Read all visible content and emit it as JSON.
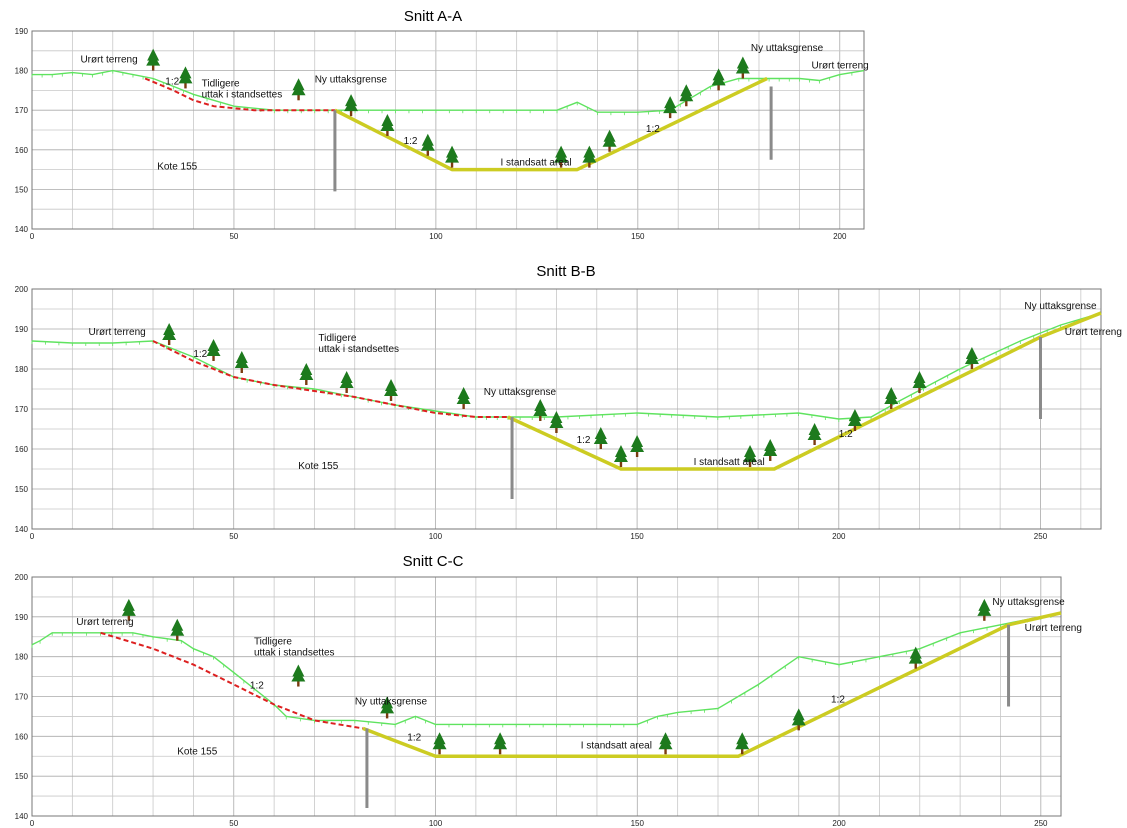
{
  "labels": {
    "unbroken_terrain": "Urørt terreng",
    "former_extraction": [
      "Tidligere",
      "uttak i standsettes"
    ],
    "new_boundary": "Ny uttaksgrense",
    "restored_area": "I standsatt areal",
    "level": "Kote 155",
    "slope": "1:2"
  },
  "colors": {
    "terrain": "#5fe35f",
    "former": "#dd2020",
    "restored": "#cccc22",
    "boundary": "#8a8a8a",
    "tree_green": "#1d7a1d",
    "tree_trunk": "#7a3b10"
  },
  "chart_data": [
    {
      "type": "cross-section",
      "title": "Snitt A-A",
      "xlim": [
        0,
        206
      ],
      "ylim": [
        140,
        190
      ],
      "xticks": [
        0,
        50,
        100,
        150,
        200
      ],
      "yticks": [
        140,
        150,
        160,
        170,
        180,
        190
      ],
      "terrain": [
        [
          0,
          179
        ],
        [
          5,
          179
        ],
        [
          10,
          179.5
        ],
        [
          15,
          179
        ],
        [
          20,
          180
        ],
        [
          25,
          179
        ],
        [
          30,
          178
        ],
        [
          35,
          176
        ],
        [
          40,
          174
        ],
        [
          50,
          171
        ],
        [
          60,
          170
        ],
        [
          70,
          170
        ],
        [
          80,
          170
        ],
        [
          90,
          170
        ],
        [
          100,
          170
        ],
        [
          110,
          170
        ],
        [
          120,
          170
        ],
        [
          130,
          170
        ],
        [
          135,
          172
        ],
        [
          140,
          169.5
        ],
        [
          150,
          169.5
        ],
        [
          158,
          170
        ],
        [
          163,
          173
        ],
        [
          168,
          176
        ],
        [
          175,
          178
        ],
        [
          180,
          178
        ],
        [
          185,
          178
        ],
        [
          190,
          178
        ],
        [
          195,
          177.5
        ],
        [
          200,
          179
        ],
        [
          206,
          180
        ]
      ],
      "former": [
        [
          28,
          178
        ],
        [
          35,
          175
        ],
        [
          40,
          172.5
        ],
        [
          45,
          171
        ],
        [
          55,
          170
        ],
        [
          70,
          170
        ],
        [
          75,
          170
        ]
      ],
      "restored": [
        [
          75,
          170
        ],
        [
          104,
          155
        ],
        [
          135,
          155
        ],
        [
          182,
          178
        ]
      ],
      "boundaries": [
        [
          75,
          170,
          149.5
        ],
        [
          183,
          176,
          157.5
        ]
      ],
      "trees": [
        [
          30,
          180
        ],
        [
          38,
          175.5
        ],
        [
          66,
          172.5
        ],
        [
          79,
          168.5
        ],
        [
          88,
          163.5
        ],
        [
          98,
          158.5
        ],
        [
          104,
          155.5
        ],
        [
          131,
          155.5
        ],
        [
          138,
          155.5
        ],
        [
          143,
          159.5
        ],
        [
          158,
          168
        ],
        [
          162,
          171
        ],
        [
          170,
          175
        ],
        [
          176,
          178
        ]
      ],
      "annotations": [
        {
          "key": "unbroken_terrain",
          "x": 12,
          "y": 182
        },
        {
          "key": "former_extraction",
          "x": 42,
          "y": 176
        },
        {
          "key": "new_boundary",
          "x": 70,
          "y": 177
        },
        {
          "key": "new_boundary",
          "x": 178,
          "y": 185
        },
        {
          "key": "unbroken_terrain",
          "x": 193,
          "y": 180.5
        },
        {
          "key": "restored_area",
          "x": 116,
          "y": 156
        },
        {
          "key": "level",
          "x": 31,
          "y": 155
        },
        {
          "key": "slope",
          "x": 33,
          "y": 176.5
        },
        {
          "key": "slope",
          "x": 92,
          "y": 161.5
        },
        {
          "key": "slope",
          "x": 152,
          "y": 164.5
        }
      ]
    },
    {
      "type": "cross-section",
      "title": "Snitt B-B",
      "xlim": [
        0,
        265
      ],
      "ylim": [
        140,
        200
      ],
      "xticks": [
        0,
        50,
        100,
        150,
        200,
        250
      ],
      "yticks": [
        140,
        150,
        160,
        170,
        180,
        190,
        200
      ],
      "terrain": [
        [
          0,
          187
        ],
        [
          10,
          186.5
        ],
        [
          20,
          186.5
        ],
        [
          30,
          187
        ],
        [
          40,
          183
        ],
        [
          50,
          178
        ],
        [
          60,
          176
        ],
        [
          70,
          175
        ],
        [
          80,
          173
        ],
        [
          90,
          171
        ],
        [
          100,
          169.5
        ],
        [
          110,
          168
        ],
        [
          118,
          168
        ],
        [
          130,
          168
        ],
        [
          150,
          169
        ],
        [
          170,
          168
        ],
        [
          190,
          169
        ],
        [
          200,
          167.5
        ],
        [
          208,
          168
        ],
        [
          215,
          172
        ],
        [
          230,
          180
        ],
        [
          245,
          187
        ],
        [
          255,
          191
        ],
        [
          265,
          194
        ]
      ],
      "former": [
        [
          30,
          187
        ],
        [
          40,
          182
        ],
        [
          50,
          178
        ],
        [
          60,
          176
        ],
        [
          70,
          174.5
        ],
        [
          80,
          173
        ],
        [
          90,
          171
        ],
        [
          100,
          169
        ],
        [
          110,
          168
        ],
        [
          118,
          168
        ]
      ],
      "restored": [
        [
          118,
          168
        ],
        [
          146,
          155
        ],
        [
          184,
          155
        ],
        [
          250,
          188
        ],
        [
          265,
          194
        ]
      ],
      "boundaries": [
        [
          250,
          188,
          167.5
        ],
        [
          119,
          168,
          147.5
        ]
      ],
      "trees": [
        [
          34,
          186
        ],
        [
          45,
          182
        ],
        [
          52,
          179
        ],
        [
          68,
          176
        ],
        [
          78,
          174
        ],
        [
          89,
          172
        ],
        [
          107,
          170
        ],
        [
          126,
          167
        ],
        [
          130,
          164
        ],
        [
          141,
          160
        ],
        [
          146,
          155.5
        ],
        [
          150,
          158
        ],
        [
          178,
          155.5
        ],
        [
          183,
          157
        ],
        [
          194,
          161
        ],
        [
          204,
          164.5
        ],
        [
          213,
          170
        ],
        [
          220,
          174
        ],
        [
          233,
          180
        ]
      ],
      "annotations": [
        {
          "key": "unbroken_terrain",
          "x": 14,
          "y": 188.5
        },
        {
          "key": "former_extraction",
          "x": 71,
          "y": 187
        },
        {
          "key": "new_boundary",
          "x": 112,
          "y": 173.5
        },
        {
          "key": "new_boundary",
          "x": 246,
          "y": 195
        },
        {
          "key": "unbroken_terrain",
          "x": 256,
          "y": 188.5
        },
        {
          "key": "restored_area",
          "x": 164,
          "y": 156
        },
        {
          "key": "level",
          "x": 66,
          "y": 155
        },
        {
          "key": "slope",
          "x": 40,
          "y": 183
        },
        {
          "key": "slope",
          "x": 135,
          "y": 161.5
        },
        {
          "key": "slope",
          "x": 200,
          "y": 163
        }
      ]
    },
    {
      "type": "cross-section",
      "title": "Snitt C-C",
      "xlim": [
        0,
        255
      ],
      "ylim": [
        140,
        200
      ],
      "xticks": [
        0,
        50,
        100,
        150,
        200,
        250
      ],
      "yticks": [
        140,
        150,
        160,
        170,
        180,
        190,
        200
      ],
      "terrain": [
        [
          0,
          183
        ],
        [
          2,
          184
        ],
        [
          5,
          186
        ],
        [
          10,
          186
        ],
        [
          17,
          186
        ],
        [
          25,
          186
        ],
        [
          30,
          185
        ],
        [
          37,
          184
        ],
        [
          40,
          182
        ],
        [
          45,
          180
        ],
        [
          50,
          176
        ],
        [
          55,
          172
        ],
        [
          60,
          168
        ],
        [
          63,
          165
        ],
        [
          70,
          164
        ],
        [
          80,
          164
        ],
        [
          90,
          163
        ],
        [
          95,
          165
        ],
        [
          100,
          163
        ],
        [
          110,
          163
        ],
        [
          120,
          163
        ],
        [
          130,
          163
        ],
        [
          140,
          163
        ],
        [
          150,
          163
        ],
        [
          155,
          165
        ],
        [
          160,
          166
        ],
        [
          170,
          167
        ],
        [
          180,
          173
        ],
        [
          190,
          180
        ],
        [
          200,
          178
        ],
        [
          210,
          180
        ],
        [
          220,
          182
        ],
        [
          230,
          186
        ],
        [
          240,
          188
        ],
        [
          250,
          190
        ],
        [
          255,
          191
        ]
      ],
      "former": [
        [
          17,
          186
        ],
        [
          30,
          182
        ],
        [
          40,
          178
        ],
        [
          50,
          173
        ],
        [
          60,
          168
        ],
        [
          70,
          164
        ],
        [
          82,
          162
        ]
      ],
      "restored": [
        [
          82,
          162
        ],
        [
          100,
          155
        ],
        [
          175,
          155
        ],
        [
          242,
          188
        ],
        [
          255,
          191
        ]
      ],
      "boundaries": [
        [
          242,
          188,
          167.5
        ],
        [
          83,
          162,
          142
        ]
      ],
      "trees": [
        [
          24,
          189
        ],
        [
          36,
          184
        ],
        [
          66,
          172.5
        ],
        [
          88,
          164.5
        ],
        [
          101,
          155.5
        ],
        [
          116,
          155.5
        ],
        [
          157,
          155.5
        ],
        [
          176,
          155.5
        ],
        [
          190,
          161.5
        ],
        [
          219,
          177
        ],
        [
          236,
          189
        ]
      ],
      "annotations": [
        {
          "key": "unbroken_terrain",
          "x": 11,
          "y": 188
        },
        {
          "key": "former_extraction",
          "x": 55,
          "y": 183
        },
        {
          "key": "new_boundary",
          "x": 80,
          "y": 168
        },
        {
          "key": "new_boundary",
          "x": 238,
          "y": 193
        },
        {
          "key": "unbroken_terrain",
          "x": 246,
          "y": 186.5
        },
        {
          "key": "restored_area",
          "x": 136,
          "y": 157
        },
        {
          "key": "level",
          "x": 36,
          "y": 155.5
        },
        {
          "key": "slope",
          "x": 54,
          "y": 172
        },
        {
          "key": "slope",
          "x": 93,
          "y": 159
        },
        {
          "key": "slope",
          "x": 198,
          "y": 168.5
        }
      ]
    }
  ]
}
